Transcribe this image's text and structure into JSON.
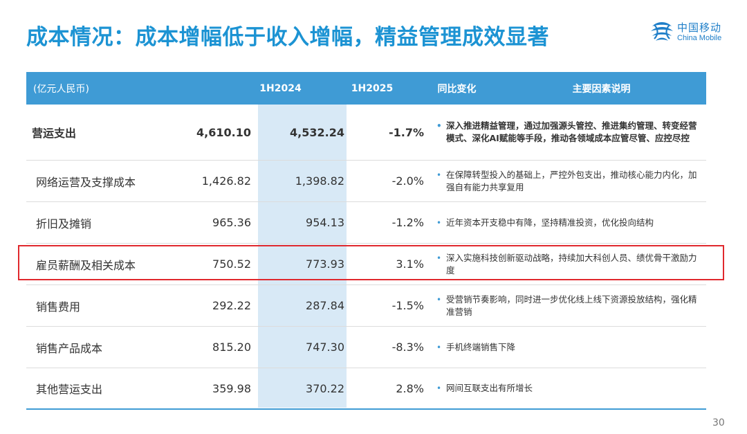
{
  "title": "成本情况：成本增幅低于收入增幅，精益管理成效显著",
  "logo": {
    "cn": "中国移动",
    "en": "China Mobile"
  },
  "colors": {
    "accent": "#1c93d3",
    "header": "#3f9bd5",
    "highlight_col": "#d8e9f6",
    "highlight_box": "#e0282d"
  },
  "table": {
    "headers": {
      "unit": "(亿元人民币)",
      "h2024": "1H2024",
      "h2025": "1H2025",
      "yoy": "同比变化",
      "factors": "主要因素说明"
    },
    "rows": [
      {
        "item": "营运支出",
        "h2024": "4,610.10",
        "h2025": "4,532.24",
        "yoy": "-1.7%",
        "note": "深入推进精益管理，通过加强源头管控、推进集约管理、转变经营模式、深化AI赋能等手段，推动各领域成本应管尽管、应控尽控"
      },
      {
        "item": "网络运营及支撑成本",
        "h2024": "1,426.82",
        "h2025": "1,398.82",
        "yoy": "-2.0%",
        "note": "在保障转型投入的基础上，严控外包支出，推动核心能力内化，加强自有能力共享复用"
      },
      {
        "item": "折旧及摊销",
        "h2024": "965.36",
        "h2025": "954.13",
        "yoy": "-1.2%",
        "note": "近年资本开支稳中有降，坚持精准投资，优化投向结构"
      },
      {
        "item": "雇员薪酬及相关成本",
        "h2024": "750.52",
        "h2025": "773.93",
        "yoy": "3.1%",
        "note": "深入实施科技创新驱动战略，持续加大科创人员、绩优骨干激励力度"
      },
      {
        "item": "销售费用",
        "h2024": "292.22",
        "h2025": "287.84",
        "yoy": "-1.5%",
        "note": "受营销节奏影响，同时进一步优化线上线下资源投放结构，强化精准营销"
      },
      {
        "item": "销售产品成本",
        "h2024": "815.20",
        "h2025": "747.30",
        "yoy": "-8.3%",
        "note": "手机终端销售下降"
      },
      {
        "item": "其他营运支出",
        "h2024": "359.98",
        "h2025": "370.22",
        "yoy": "2.8%",
        "note": "网间互联支出有所增长"
      }
    ]
  },
  "page_number": "30"
}
